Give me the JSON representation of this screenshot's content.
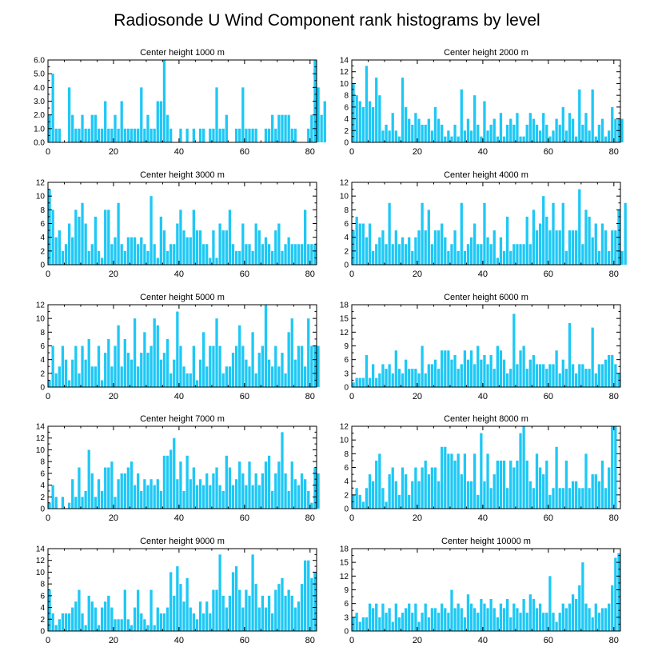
{
  "figure_title": "Radiosonde U Wind Component rank histograms by level",
  "bar_color": "#1ec8f5",
  "chart_data": [
    {
      "type": "bar",
      "title": "Center height 1000 m",
      "xlim": [
        0,
        82
      ],
      "ylim": [
        0,
        6
      ],
      "x_ticks": [
        0,
        20,
        40,
        60,
        80
      ],
      "y_ticks": [
        "0.0",
        "1.0",
        "2.0",
        "3.0",
        "4.0",
        "5.0",
        "6.0"
      ],
      "values": [
        2,
        5,
        1,
        1,
        0,
        0,
        4,
        2,
        1,
        1,
        2,
        1,
        1,
        2,
        2,
        1,
        1,
        3,
        1,
        1,
        2,
        1,
        3,
        1,
        1,
        1,
        1,
        1,
        4,
        1,
        2,
        1,
        1,
        3,
        3,
        6,
        2,
        1,
        0,
        0,
        1,
        0,
        1,
        0,
        1,
        0,
        1,
        1,
        0,
        1,
        1,
        4,
        1,
        1,
        2,
        0,
        0,
        1,
        1,
        4,
        1,
        1,
        1,
        1,
        0,
        0,
        1,
        1,
        2,
        1,
        2,
        2,
        2,
        2,
        1,
        1,
        0,
        0,
        0,
        1,
        2,
        6,
        4,
        2,
        3
      ]
    },
    {
      "type": "bar",
      "title": "Center height 2000 m",
      "xlim": [
        0,
        82
      ],
      "ylim": [
        0,
        14
      ],
      "x_ticks": [
        0,
        20,
        40,
        60,
        80
      ],
      "y_ticks": [
        "0",
        "2",
        "4",
        "6",
        "8",
        "10",
        "12",
        "14"
      ],
      "values": [
        10,
        8,
        7,
        6,
        13,
        7,
        6,
        11,
        8,
        2,
        3,
        2,
        5,
        2,
        1,
        11,
        6,
        4,
        3,
        5,
        4,
        3,
        3,
        4,
        2,
        6,
        4,
        3,
        1,
        2,
        1,
        3,
        1,
        9,
        2,
        4,
        2,
        8,
        3,
        1,
        7,
        2,
        3,
        4,
        1,
        5,
        1,
        3,
        4,
        3,
        5,
        1,
        1,
        3,
        5,
        4,
        3,
        2,
        5,
        3,
        1,
        2,
        4,
        3,
        6,
        2,
        5,
        4,
        1,
        9,
        3,
        5,
        2,
        9,
        1,
        3,
        4,
        1,
        2,
        6,
        4,
        4,
        4
      ]
    },
    {
      "type": "bar",
      "title": "Center height 3000 m",
      "xlim": [
        0,
        82
      ],
      "ylim": [
        0,
        12
      ],
      "x_ticks": [
        0,
        20,
        40,
        60,
        80
      ],
      "y_ticks": [
        "0",
        "2",
        "4",
        "6",
        "8",
        "10",
        "12"
      ],
      "values": [
        11,
        8,
        4,
        5,
        2,
        3,
        6,
        4,
        8,
        7,
        9,
        6,
        2,
        3,
        7,
        2,
        1,
        8,
        8,
        3,
        4,
        9,
        3,
        2,
        4,
        4,
        4,
        3,
        4,
        3,
        2,
        10,
        3,
        1,
        7,
        5,
        2,
        3,
        3,
        6,
        8,
        5,
        4,
        4,
        8,
        5,
        5,
        3,
        3,
        1,
        5,
        1,
        6,
        5,
        5,
        8,
        3,
        2,
        2,
        6,
        3,
        3,
        2,
        6,
        5,
        3,
        4,
        3,
        2,
        5,
        6,
        2,
        3,
        4,
        3,
        3,
        3,
        3,
        8,
        3,
        3,
        3
      ]
    },
    {
      "type": "bar",
      "title": "Center height 4000 m",
      "xlim": [
        0,
        82
      ],
      "ylim": [
        0,
        12
      ],
      "x_ticks": [
        0,
        20,
        40,
        60,
        80
      ],
      "y_ticks": [
        "0",
        "2",
        "4",
        "6",
        "8",
        "10",
        "12"
      ],
      "values": [
        5,
        7,
        6,
        6,
        4,
        6,
        2,
        3,
        4,
        5,
        3,
        9,
        3,
        5,
        3,
        4,
        3,
        4,
        2,
        4,
        5,
        9,
        5,
        8,
        3,
        5,
        5,
        6,
        4,
        2,
        3,
        5,
        2,
        9,
        2,
        3,
        4,
        6,
        3,
        3,
        9,
        4,
        3,
        5,
        1,
        4,
        2,
        7,
        2,
        3,
        3,
        3,
        3,
        7,
        3,
        8,
        5,
        6,
        10,
        7,
        5,
        9,
        5,
        5,
        9,
        2,
        5,
        5,
        5,
        11,
        3,
        8,
        7,
        4,
        6,
        2,
        6,
        5,
        2,
        5,
        5,
        8,
        2,
        9
      ]
    },
    {
      "type": "bar",
      "title": "Center height 5000 m",
      "xlim": [
        0,
        82
      ],
      "ylim": [
        0,
        12
      ],
      "x_ticks": [
        0,
        20,
        40,
        60,
        80
      ],
      "y_ticks": [
        "0",
        "2",
        "4",
        "6",
        "8",
        "10",
        "12"
      ],
      "values": [
        1,
        6,
        2,
        3,
        6,
        4,
        1,
        4,
        6,
        2,
        6,
        4,
        7,
        3,
        3,
        6,
        1,
        5,
        7,
        3,
        6,
        9,
        3,
        7,
        5,
        4,
        10,
        3,
        5,
        8,
        5,
        6,
        10,
        9,
        4,
        5,
        7,
        2,
        4,
        11,
        6,
        3,
        2,
        2,
        6,
        1,
        4,
        8,
        3,
        6,
        6,
        10,
        6,
        2,
        3,
        3,
        5,
        6,
        9,
        6,
        4,
        3,
        8,
        2,
        5,
        6,
        12,
        4,
        3,
        6,
        3,
        5,
        2,
        8,
        10,
        4,
        6,
        6,
        3,
        10,
        6,
        6,
        6
      ]
    },
    {
      "type": "bar",
      "title": "Center height 6000 m",
      "xlim": [
        0,
        82
      ],
      "ylim": [
        0,
        18
      ],
      "x_ticks": [
        0,
        20,
        40,
        60,
        80
      ],
      "y_ticks": [
        "0",
        "3",
        "6",
        "9",
        "12",
        "15",
        "18"
      ],
      "values": [
        1,
        2,
        2,
        2,
        7,
        2,
        5,
        2,
        3,
        5,
        4,
        5,
        3,
        8,
        4,
        3,
        6,
        4,
        4,
        4,
        3,
        9,
        3,
        5,
        5,
        6,
        4,
        8,
        8,
        8,
        6,
        7,
        4,
        5,
        8,
        6,
        8,
        5,
        9,
        6,
        7,
        5,
        7,
        4,
        9,
        8,
        6,
        3,
        4,
        16,
        5,
        8,
        9,
        4,
        6,
        7,
        5,
        5,
        5,
        4,
        5,
        5,
        8,
        3,
        6,
        4,
        14,
        5,
        3,
        5,
        5,
        4,
        4,
        13,
        3,
        5,
        5,
        6,
        7,
        7,
        5,
        3
      ]
    },
    {
      "type": "bar",
      "title": "Center height 7000 m",
      "xlim": [
        0,
        82
      ],
      "ylim": [
        0,
        14
      ],
      "x_ticks": [
        0,
        20,
        40,
        60,
        80
      ],
      "y_ticks": [
        "0",
        "2",
        "4",
        "6",
        "8",
        "10",
        "12",
        "14"
      ],
      "values": [
        1,
        4,
        2,
        0,
        2,
        0,
        1,
        5,
        2,
        7,
        2,
        3,
        10,
        6,
        2,
        5,
        3,
        7,
        7,
        8,
        2,
        5,
        6,
        6,
        7,
        8,
        4,
        6,
        3,
        5,
        4,
        5,
        4,
        5,
        3,
        9,
        9,
        10,
        12,
        5,
        8,
        3,
        9,
        5,
        7,
        4,
        5,
        4,
        6,
        4,
        6,
        7,
        4,
        3,
        9,
        7,
        4,
        5,
        8,
        6,
        4,
        8,
        4,
        6,
        4,
        6,
        8,
        9,
        3,
        6,
        8,
        13,
        6,
        3,
        8,
        5,
        4,
        6,
        5,
        3,
        1,
        7,
        6
      ]
    },
    {
      "type": "bar",
      "title": "Center height 8000 m",
      "xlim": [
        0,
        82
      ],
      "ylim": [
        0,
        12
      ],
      "x_ticks": [
        0,
        20,
        40,
        60,
        80
      ],
      "y_ticks": [
        "0",
        "2",
        "4",
        "6",
        "8",
        "10",
        "12"
      ],
      "values": [
        2,
        3,
        2,
        1,
        3,
        5,
        4,
        7,
        8,
        3,
        1,
        5,
        6,
        4,
        2,
        6,
        5,
        2,
        4,
        6,
        4,
        6,
        7,
        5,
        6,
        6,
        4,
        9,
        9,
        8,
        8,
        7,
        8,
        5,
        8,
        4,
        4,
        8,
        2,
        11,
        4,
        8,
        3,
        5,
        7,
        7,
        7,
        3,
        7,
        6,
        7,
        11,
        12,
        7,
        4,
        3,
        8,
        6,
        5,
        7,
        2,
        3,
        9,
        3,
        3,
        7,
        3,
        4,
        4,
        3,
        3,
        8,
        3,
        5,
        5,
        4,
        7,
        3,
        6,
        12,
        12
      ]
    },
    {
      "type": "bar",
      "title": "Center height 9000 m",
      "xlim": [
        0,
        82
      ],
      "ylim": [
        0,
        14
      ],
      "x_ticks": [
        0,
        20,
        40,
        60,
        80
      ],
      "y_ticks": [
        "0",
        "2",
        "4",
        "6",
        "8",
        "10",
        "12",
        "14"
      ],
      "values": [
        7,
        3,
        1,
        2,
        3,
        3,
        3,
        4,
        5,
        7,
        3,
        1,
        6,
        5,
        4,
        1,
        4,
        5,
        6,
        4,
        2,
        2,
        2,
        7,
        2,
        1,
        4,
        7,
        3,
        2,
        1,
        7,
        1,
        4,
        3,
        3,
        4,
        10,
        6,
        11,
        8,
        5,
        9,
        4,
        3,
        2,
        5,
        3,
        5,
        3,
        7,
        7,
        13,
        6,
        4,
        6,
        10,
        11,
        7,
        4,
        7,
        6,
        13,
        8,
        4,
        6,
        4,
        6,
        3,
        7,
        8,
        9,
        6,
        7,
        6,
        4,
        5,
        8,
        12,
        12,
        9,
        10
      ]
    },
    {
      "type": "bar",
      "title": "Center height 10000 m",
      "xlim": [
        0,
        82
      ],
      "ylim": [
        0,
        18
      ],
      "x_ticks": [
        0,
        20,
        40,
        60,
        80
      ],
      "y_ticks": [
        "0",
        "3",
        "6",
        "9",
        "12",
        "15",
        "18"
      ],
      "values": [
        3,
        4,
        2,
        3,
        3,
        6,
        5,
        6,
        3,
        6,
        4,
        5,
        2,
        6,
        3,
        4,
        5,
        6,
        4,
        6,
        2,
        4,
        6,
        3,
        5,
        5,
        4,
        6,
        5,
        4,
        9,
        5,
        6,
        5,
        3,
        8,
        6,
        5,
        4,
        7,
        6,
        5,
        7,
        5,
        3,
        6,
        5,
        7,
        3,
        6,
        5,
        4,
        7,
        4,
        8,
        7,
        5,
        6,
        4,
        4,
        12,
        4,
        2,
        4,
        6,
        5,
        6,
        8,
        7,
        10,
        15,
        6,
        5,
        3,
        6,
        4,
        5,
        5,
        6,
        10,
        16,
        17
      ]
    }
  ]
}
